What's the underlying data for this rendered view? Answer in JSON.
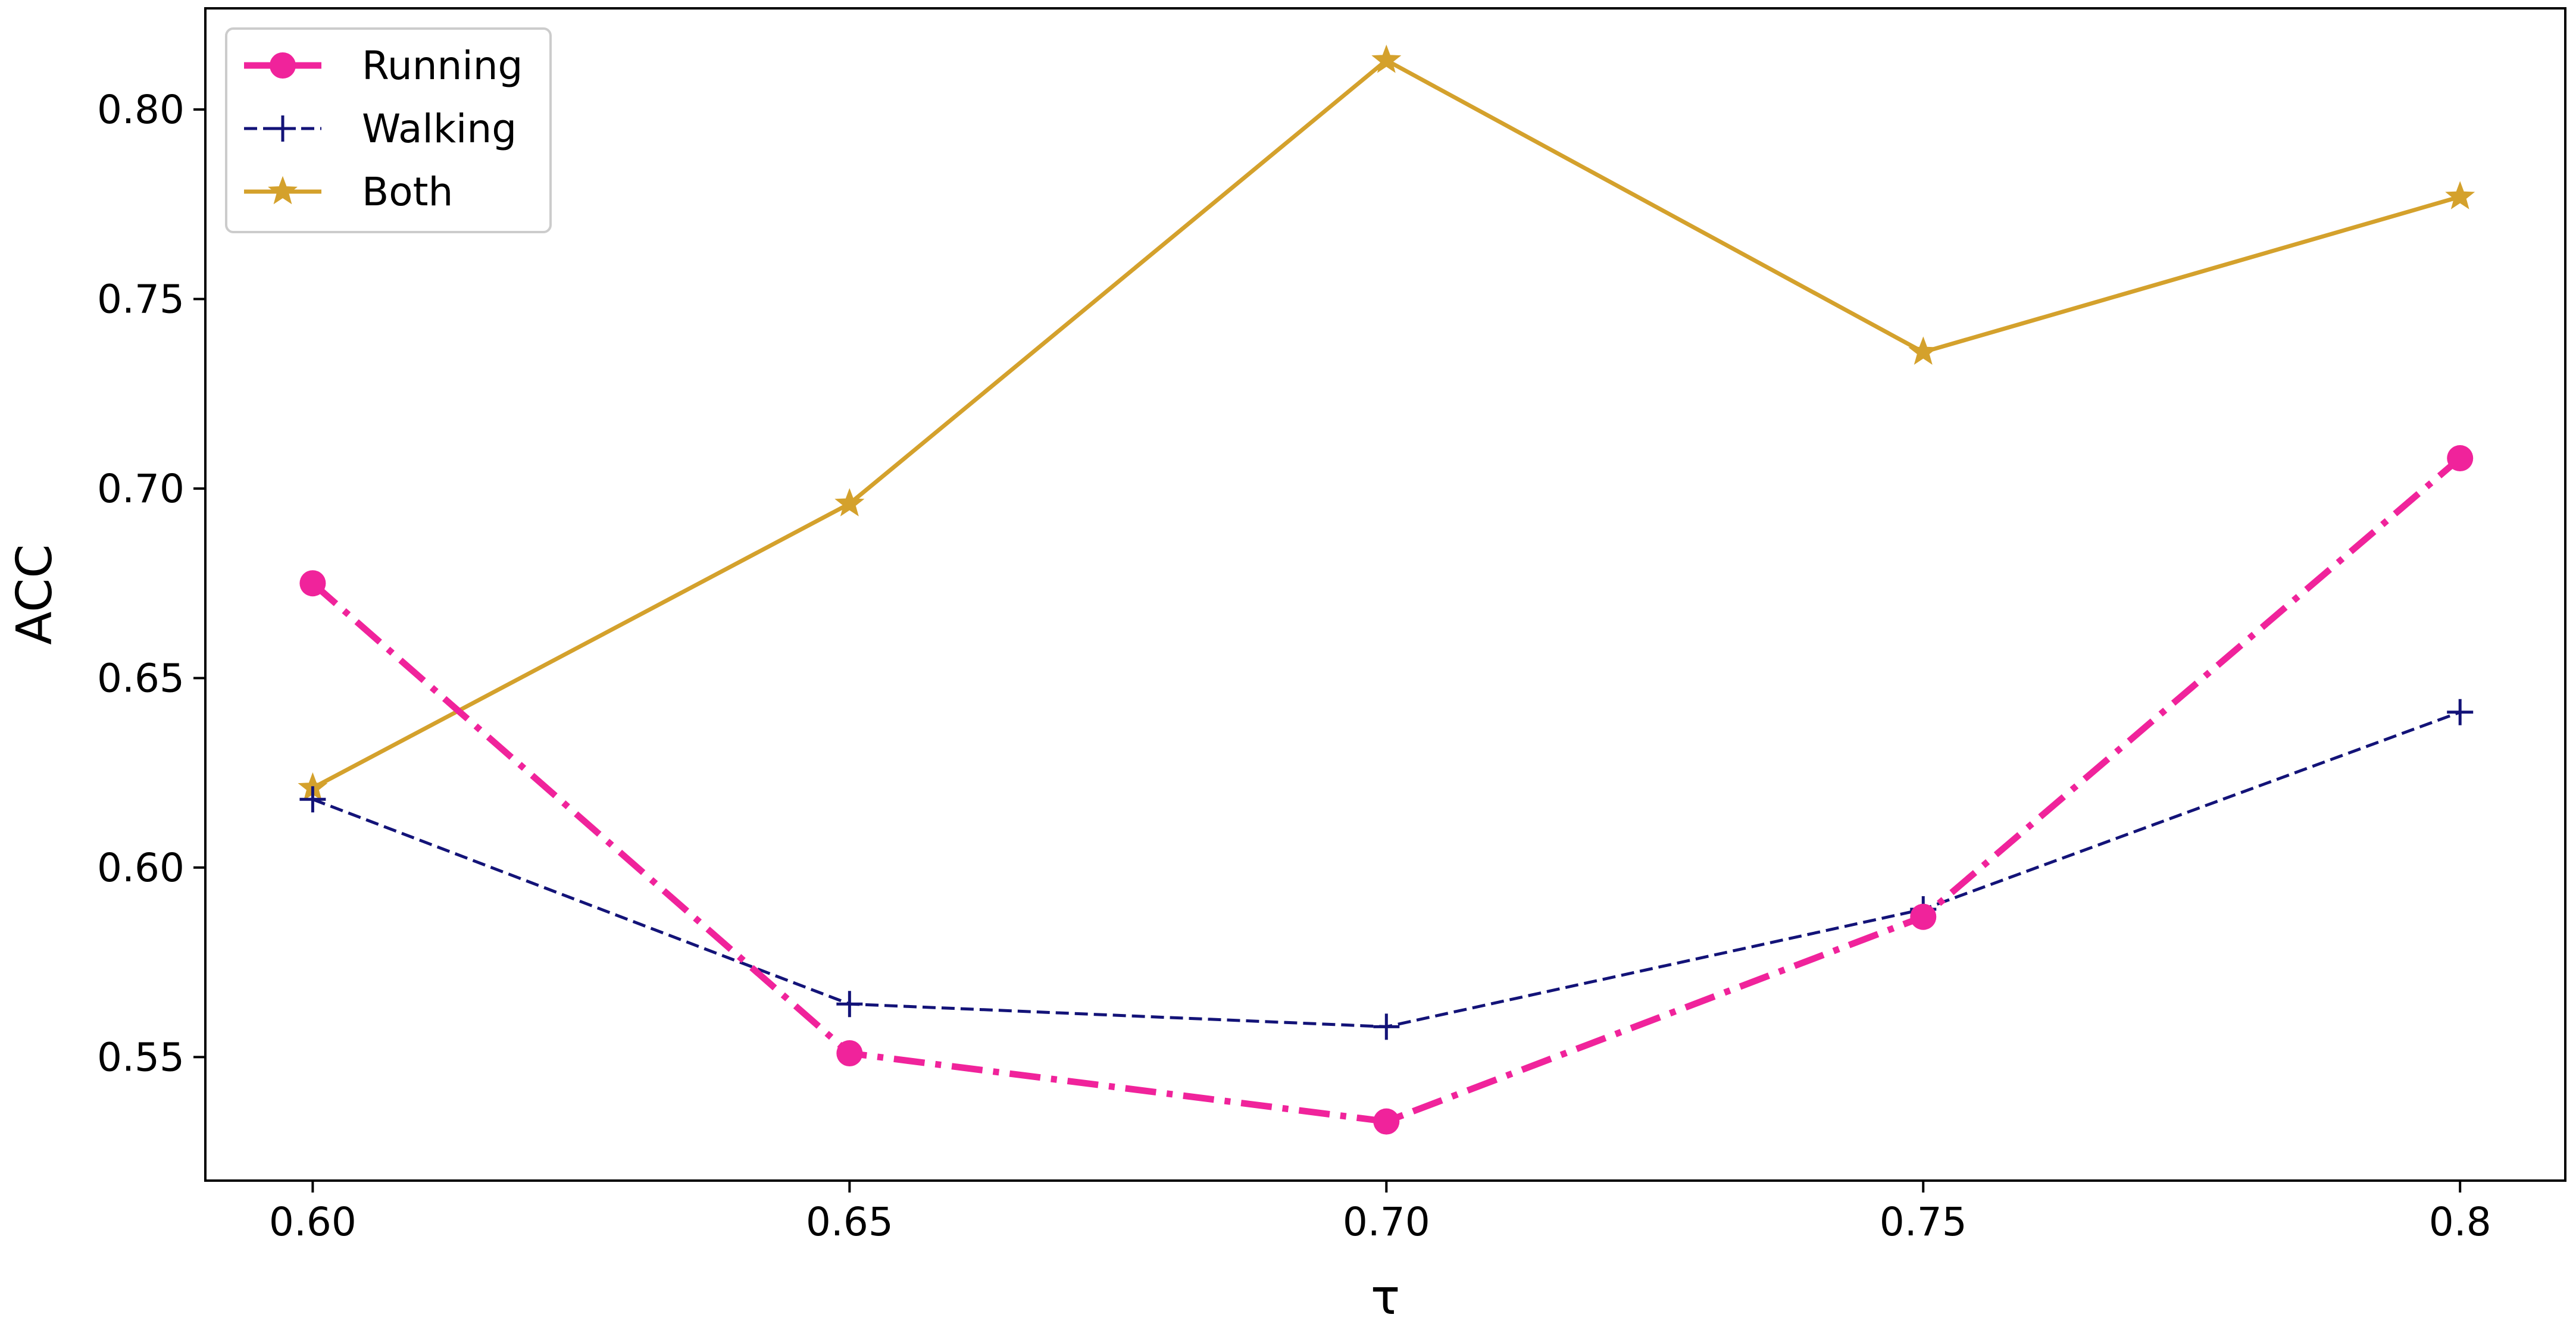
{
  "chart_data": {
    "type": "line",
    "title": "",
    "xlabel": "τ",
    "ylabel": "ACC",
    "x": [
      0.6,
      0.65,
      0.7,
      0.75,
      0.8
    ],
    "x_tick_labels": [
      "0.60",
      "0.65",
      "0.70",
      "0.75",
      "0.8"
    ],
    "y_ticks": [
      0.55,
      0.6,
      0.65,
      0.7,
      0.75,
      0.8
    ],
    "y_tick_labels": [
      "0.55",
      "0.60",
      "0.65",
      "0.70",
      "0.75",
      "0.80"
    ],
    "xlim": [
      0.59,
      0.8098
    ],
    "ylim": [
      0.5174,
      0.8267
    ],
    "grid": false,
    "legend_position": "top-left",
    "series": [
      {
        "name": "Running",
        "values": [
          0.675,
          0.551,
          0.533,
          0.587,
          0.708
        ],
        "color": "#f0239b",
        "line_style": "dash-dot",
        "marker": "circle"
      },
      {
        "name": "Walking",
        "values": [
          0.618,
          0.564,
          0.558,
          0.589,
          0.641
        ],
        "color": "#131378",
        "line_style": "dashed",
        "marker": "plus"
      },
      {
        "name": "Both",
        "values": [
          0.621,
          0.696,
          0.813,
          0.736,
          0.777
        ],
        "color": "#d4a12c",
        "line_style": "solid",
        "marker": "star"
      }
    ]
  }
}
